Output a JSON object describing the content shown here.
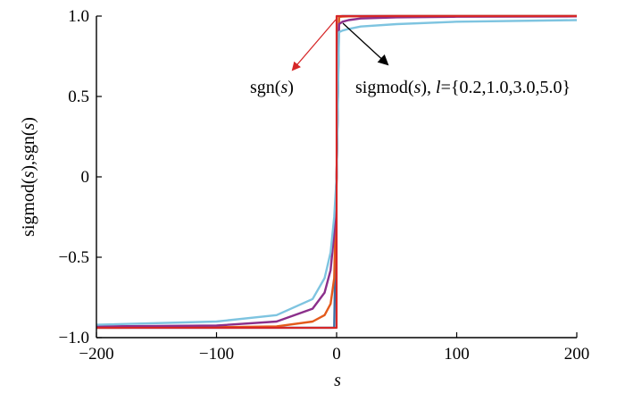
{
  "chart_data": {
    "type": "line",
    "xlabel": "s",
    "ylabel": {
      "pre": "sigmod(",
      "var1": "s",
      "mid": "),sgn(",
      "var2": "s",
      "post": ")"
    },
    "xlim": [
      -200,
      200
    ],
    "ylim": [
      -1.0,
      1.0
    ],
    "x_ticks": [
      -200,
      -100,
      0,
      100,
      200
    ],
    "x_tick_labels": [
      "−200",
      "−100",
      "0",
      "100",
      "200"
    ],
    "y_ticks": [
      -1.0,
      -0.5,
      0,
      0.5,
      1.0
    ],
    "y_tick_labels": [
      "−1.0",
      "−0.5",
      "0",
      "0.5",
      "1.0"
    ],
    "grid": false,
    "sample_x": [
      -200,
      -100,
      -50,
      -20,
      -10,
      -5,
      -2,
      0,
      2,
      5,
      10,
      20,
      50,
      100,
      200
    ],
    "series": [
      {
        "color": "#3a6ea5",
        "function": "sigmod",
        "l": 0.2,
        "values": [
          -0.9388,
          -0.9388,
          -0.9388,
          -0.9388,
          -0.9388,
          -0.9388,
          -0.938,
          0,
          0.998,
          1.0,
          1.0,
          1.0,
          1.0,
          1.0,
          1.0
        ]
      },
      {
        "color": "#e35a1c",
        "function": "sigmod",
        "l": 1.0,
        "values": [
          -0.9388,
          -0.935,
          -0.93,
          -0.9,
          -0.86,
          -0.79,
          -0.63,
          0,
          0.995,
          0.997,
          0.998,
          0.999,
          1.0,
          1.0,
          1.0
        ]
      },
      {
        "color": "#8b2f8b",
        "function": "sigmod",
        "l": 3.0,
        "values": [
          -0.93,
          -0.925,
          -0.9,
          -0.82,
          -0.72,
          -0.58,
          -0.35,
          0,
          0.95,
          0.965,
          0.975,
          0.985,
          0.992,
          0.996,
          0.998
        ]
      },
      {
        "color": "#7ec4e0",
        "function": "sigmod",
        "l": 5.0,
        "values": [
          -0.92,
          -0.9,
          -0.86,
          -0.76,
          -0.63,
          -0.47,
          -0.25,
          0,
          0.9,
          0.91,
          0.92,
          0.935,
          0.95,
          0.965,
          0.975
        ]
      },
      {
        "color": "#d62728",
        "function": "sgn",
        "name": "sgn(s)",
        "values": [
          -0.9388,
          -0.9388,
          -0.9388,
          -0.9388,
          -0.9388,
          -0.9388,
          -0.9388,
          0,
          1.0,
          1.0,
          1.0,
          1.0,
          1.0,
          1.0,
          1.0
        ]
      }
    ],
    "annotations": [
      {
        "id": "sgn",
        "pre": "sgn(",
        "var": "s",
        "post": ")",
        "arrow_color": "#d62728"
      },
      {
        "id": "sigmod",
        "pre": "sigmod(",
        "var": "s",
        "mid": "), ",
        "var2": "l",
        "post": "={0.2,1.0,3.0,5.0}",
        "arrow_color": "#000000"
      }
    ]
  }
}
